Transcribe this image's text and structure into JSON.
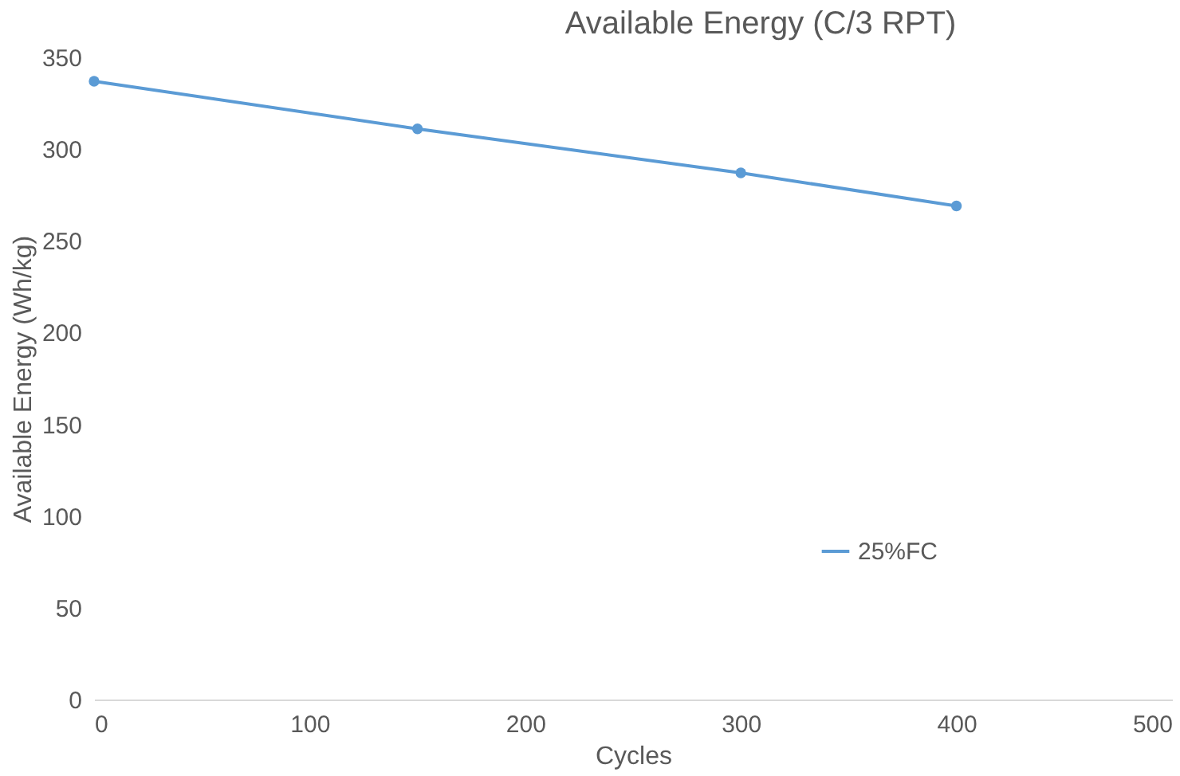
{
  "chart_data": {
    "type": "line",
    "title": "Available Energy (C/3 RPT)",
    "xlabel": "Cycles",
    "ylabel": "Available Energy (Wh/kg)",
    "x": [
      0,
      150,
      300,
      400
    ],
    "series": [
      {
        "name": "25%FC",
        "color": "#5b9bd5",
        "values": [
          337,
          311,
          287,
          269
        ]
      }
    ],
    "xlim": [
      0,
      500
    ],
    "xticks": [
      0,
      100,
      200,
      300,
      400,
      500
    ],
    "ylim": [
      0,
      350
    ],
    "yticks": [
      0,
      50,
      100,
      150,
      200,
      250,
      300,
      350
    ],
    "grid": false,
    "legend": "bottom right",
    "marker": "circle",
    "line_style": "solid"
  }
}
